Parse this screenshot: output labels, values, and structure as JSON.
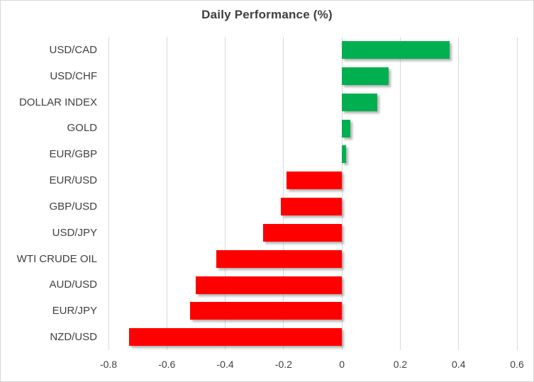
{
  "chart_data": {
    "type": "bar",
    "orientation": "horizontal",
    "title": "Daily Performance (%)",
    "categories": [
      "USD/CAD",
      "USD/CHF",
      "DOLLAR INDEX",
      "GOLD",
      "EUR/GBP",
      "EUR/USD",
      "GBP/USD",
      "USD/JPY",
      "WTI CRUDE OIL",
      "AUD/USD",
      "EUR/JPY",
      "NZD/USD"
    ],
    "values": [
      0.37,
      0.16,
      0.12,
      0.03,
      0.015,
      -0.19,
      -0.21,
      -0.27,
      -0.43,
      -0.5,
      -0.52,
      -0.73
    ],
    "xlabel": "",
    "ylabel": "",
    "xlim": [
      -0.8,
      0.6
    ],
    "xticks": [
      -0.8,
      -0.6,
      -0.4,
      -0.2,
      0,
      0.2,
      0.4,
      0.6
    ],
    "xtick_labels": [
      "-0.8",
      "-0.6",
      "-0.4",
      "-0.2",
      "0",
      "0.2",
      "0.4",
      "0.6"
    ],
    "grid": true,
    "legend": false,
    "colors": {
      "positive": "#00B050",
      "negative": "#FF0000",
      "gridline": "#D9D9D9",
      "axis_text": "#404040",
      "title_text": "#3F3F3F",
      "chart_border": "#D9D9D9",
      "background": "#FFFFFF"
    }
  }
}
